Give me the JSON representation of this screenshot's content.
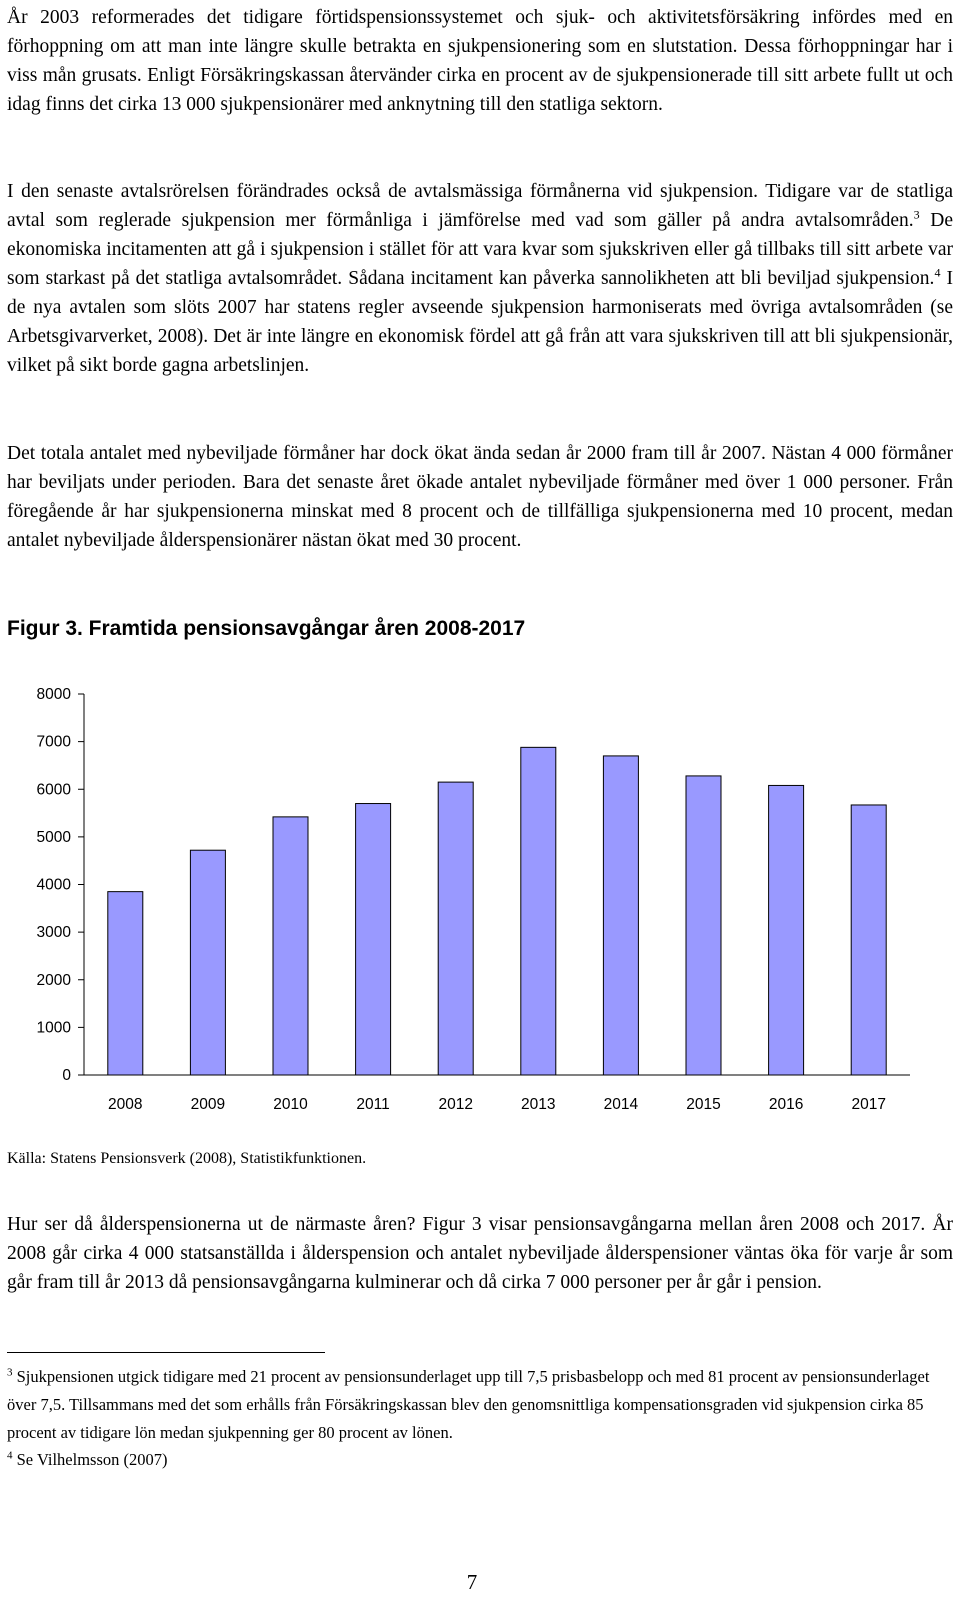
{
  "paragraphs": {
    "p1": "År 2003 reformerades det tidigare förtidspensionssystemet och sjuk- och aktivitetsförsäkring infördes med en förhoppning om att man inte längre skulle betrakta en sjukpensionering som en slutstation. Dessa förhoppningar har i viss mån grusats. Enligt Försäkringskassan återvänder cirka en procent av de sjukpensionerade till sitt arbete fullt ut och idag finns det cirka 13 000 sjukpensionärer med anknytning till den statliga sektorn.",
    "p2_a": "I den senaste avtalsrörelsen förändrades också de avtalsmässiga förmånerna vid sjukpension. Tidigare var de statliga avtal som reglerade sjukpension mer förmånliga i jämförelse med vad som gäller på andra avtalsområden.",
    "p2_ref1": "3",
    "p2_b": " De ekonomiska incitamenten att gå i sjukpension i stället för att vara kvar som sjukskriven eller gå tillbaks till sitt arbete var som starkast på det statliga avtalsområdet. Sådana incitament kan påverka sannolikheten att bli beviljad sjukpension.",
    "p2_ref2": "4",
    "p2_c": " I de nya avtalen som slöts 2007 har statens regler avseende sjukpension harmoniserats med övriga avtalsområden (se Arbetsgivarverket, 2008). Det är inte längre en ekonomisk fördel att gå från att vara sjukskriven till att bli sjukpensionär, vilket på sikt borde gagna arbetslinjen.",
    "p3": "Det totala antalet med nybeviljade förmåner har dock ökat ända sedan år 2000 fram till år 2007. Nästan 4 000 förmåner har beviljats under perioden. Bara det senaste året ökade antalet nybeviljade förmåner med över 1 000 personer. Från föregående år har sjukpensionerna minskat med 8 procent och de tillfälliga sjukpensionerna med 10 procent, medan antalet nybeviljade ålderspensionärer nästan ökat med 30 procent.",
    "p4": "Hur ser då ålderspensionerna ut de närmaste åren? Figur 3 visar pensionsavgångarna mellan åren 2008 och 2017. År 2008 går cirka 4 000 statsanställda i ålderspension och antalet nybeviljade ålderspensioner väntas öka för varje år som går fram till år 2013 då pensionsavgångarna kulminerar och då cirka 7 000 personer per år går i pension."
  },
  "figure": {
    "title": "Figur 3. Framtida pensionsavgångar åren 2008-2017",
    "source": "Källa: Statens Pensionsverk (2008), Statistikfunktionen."
  },
  "chart_data": {
    "type": "bar",
    "title": "Figur 3. Framtida pensionsavgångar åren 2008-2017",
    "categories": [
      "2008",
      "2009",
      "2010",
      "2011",
      "2012",
      "2013",
      "2014",
      "2015",
      "2016",
      "2017"
    ],
    "values": [
      3850,
      4720,
      5420,
      5700,
      6150,
      6880,
      6700,
      6280,
      6080,
      5670
    ],
    "y_ticks": [
      "0",
      "1000",
      "2000",
      "3000",
      "4000",
      "5000",
      "6000",
      "7000",
      "8000"
    ],
    "ylim": [
      0,
      8000
    ],
    "xlabel": "",
    "ylabel": "",
    "grid": false,
    "legend": "none",
    "bar_color": "#9999ff",
    "bar_edge_color": "#000000"
  },
  "footnotes": {
    "fn3_num": "3",
    "fn3_text": "Sjukpensionen utgick tidigare med 21 procent av pensionsunderlaget upp till 7,5 prisbasbelopp och med 81 procent av pensionsunderlaget över 7,5. Tillsammans med det som erhålls från Försäkringskassan blev den genomsnittliga kompensationsgraden vid sjukpension cirka 85 procent av tidigare lön medan sjukpenning ger 80 procent av lönen.",
    "fn4_num": "4",
    "fn4_text": "Se Vilhelmsson (2007)"
  },
  "page_number": "7"
}
